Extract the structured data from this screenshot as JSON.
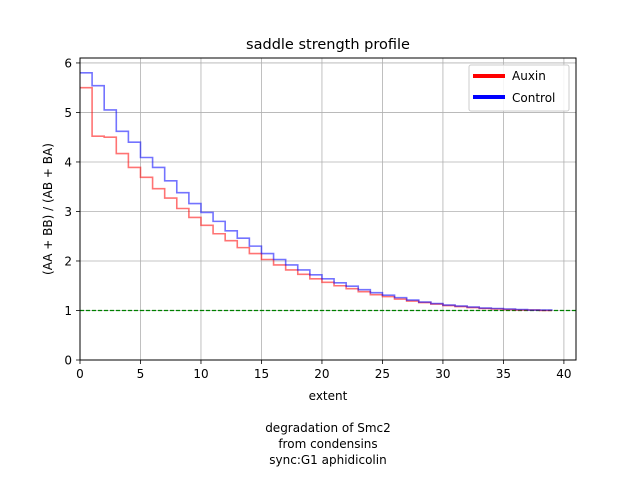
{
  "chart_data": {
    "type": "line",
    "drawstyle": "steps-post",
    "title": "saddle strength profile",
    "xlabel": "extent",
    "ylabel": "(AA + BB) / (AB + BA)",
    "xlim": [
      0,
      41
    ],
    "ylim": [
      0,
      6.1
    ],
    "xticks": [
      0,
      5,
      10,
      15,
      20,
      25,
      30,
      35,
      40
    ],
    "yticks": [
      0,
      1,
      2,
      3,
      4,
      5,
      6
    ],
    "grid": true,
    "legend_position": "top-right",
    "reference_line": {
      "y": 1,
      "color": "#008000",
      "style": "dashed"
    },
    "caption": [
      "degradation of Smc2",
      "from condensins",
      "sync:G1 aphidicolin"
    ],
    "series": [
      {
        "name": "Auxin",
        "color": "#ff0000",
        "x": [
          0,
          1,
          2,
          3,
          4,
          5,
          6,
          7,
          8,
          9,
          10,
          11,
          12,
          13,
          14,
          15,
          16,
          17,
          18,
          19,
          20,
          21,
          22,
          23,
          24,
          25,
          26,
          27,
          28,
          29,
          30,
          31,
          32,
          33,
          34,
          35,
          36,
          37,
          38,
          39
        ],
        "y": [
          5.5,
          4.52,
          4.5,
          4.17,
          3.89,
          3.69,
          3.46,
          3.27,
          3.06,
          2.88,
          2.72,
          2.55,
          2.41,
          2.27,
          2.15,
          2.03,
          1.92,
          1.82,
          1.73,
          1.64,
          1.57,
          1.5,
          1.44,
          1.38,
          1.32,
          1.28,
          1.23,
          1.19,
          1.16,
          1.13,
          1.1,
          1.08,
          1.06,
          1.04,
          1.03,
          1.02,
          1.01,
          1.01,
          1.0,
          1.0
        ]
      },
      {
        "name": "Control",
        "color": "#0000ff",
        "x": [
          0,
          1,
          2,
          3,
          4,
          5,
          6,
          7,
          8,
          9,
          10,
          11,
          12,
          13,
          14,
          15,
          16,
          17,
          18,
          19,
          20,
          21,
          22,
          23,
          24,
          25,
          26,
          27,
          28,
          29,
          30,
          31,
          32,
          33,
          34,
          35,
          36,
          37,
          38,
          39
        ],
        "y": [
          5.8,
          5.54,
          5.05,
          4.62,
          4.4,
          4.09,
          3.89,
          3.62,
          3.38,
          3.16,
          2.98,
          2.8,
          2.61,
          2.46,
          2.3,
          2.15,
          2.03,
          1.92,
          1.82,
          1.72,
          1.64,
          1.56,
          1.49,
          1.42,
          1.36,
          1.31,
          1.26,
          1.21,
          1.17,
          1.14,
          1.11,
          1.09,
          1.07,
          1.05,
          1.04,
          1.03,
          1.02,
          1.01,
          1.01,
          1.0
        ]
      }
    ]
  }
}
